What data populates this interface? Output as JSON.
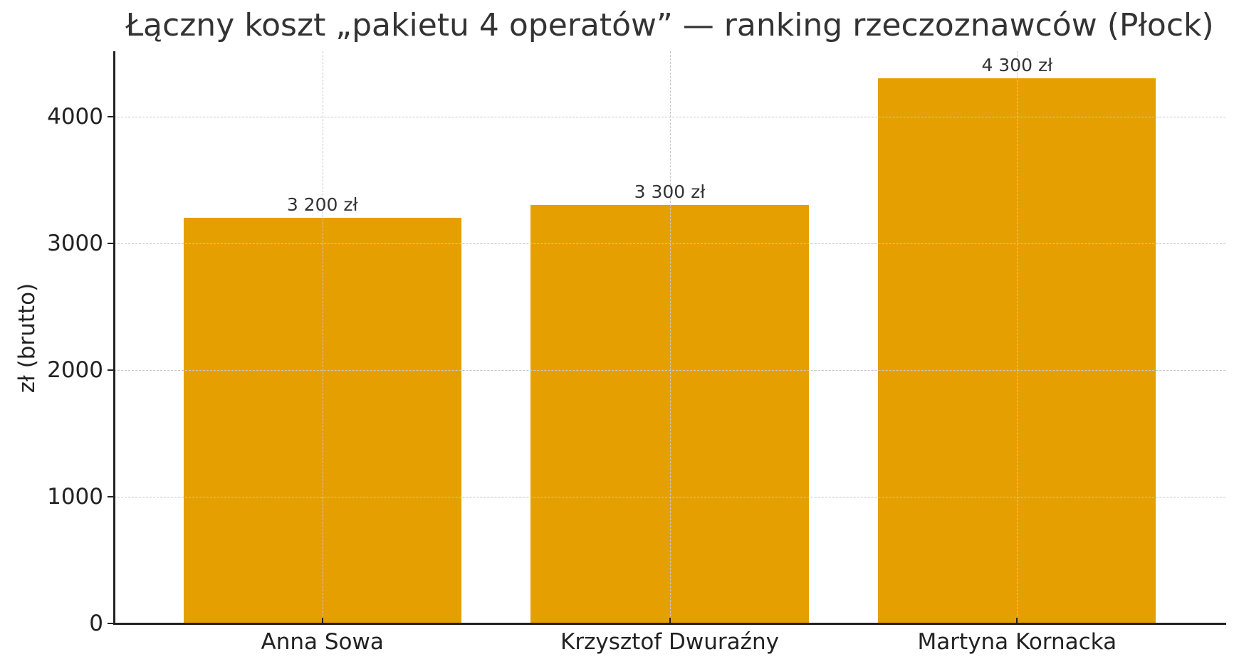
{
  "chart_data": {
    "type": "bar",
    "title": "Łączny koszt „pakietu 4 operatów” — ranking rzeczoznawców (Płock)",
    "xlabel": "",
    "ylabel": "zł (brutto)",
    "categories": [
      "Anna Sowa",
      "Krzysztof Dwuraźny",
      "Martyna Kornacka"
    ],
    "values": [
      3200,
      3300,
      4300
    ],
    "data_labels": [
      "3 200 zł",
      "3 300 zł",
      "4 300 zł"
    ],
    "ylim": [
      0,
      4515
    ],
    "yticks": [
      0,
      1000,
      2000,
      3000,
      4000
    ],
    "ytick_labels": [
      "0",
      "1000",
      "2000",
      "3000",
      "4000"
    ],
    "grid": true,
    "grid_style": "dashed",
    "bar_color": "#E69F00",
    "legend": null
  }
}
